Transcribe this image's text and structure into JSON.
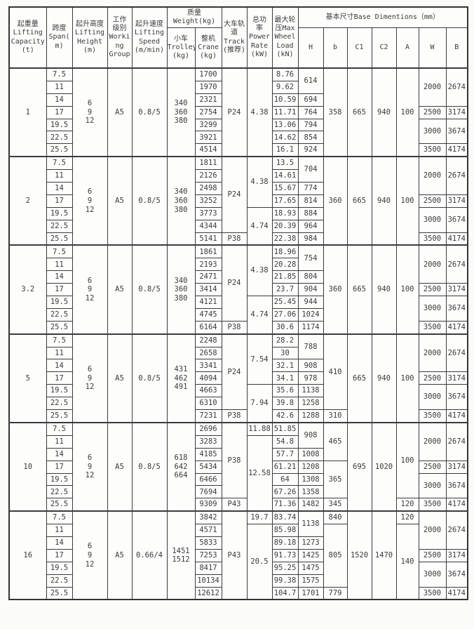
{
  "header": {
    "capacity": "起重量\nLifting\nCapacity\n(t)",
    "span": "跨度\nSpan(\nm)",
    "height": "起升高度\nLifting\nHeight\n(m)",
    "work_group": "工作\n级别\nWorki\nng\nGroup",
    "speed": "起升速度\nLifting\nSpeed\n(m/min)",
    "weight_group": "质量\nWeight(kg)",
    "trolley": "小车\nTrolley\n(kg)",
    "crane": "整机\nCrane\n(kg)",
    "track": "大车轨\n道\nTrack\n(推荐)",
    "power": "总功\n率\nPower\nRate\n(kW)",
    "wheel": "最大轮\n压Max\nWheel\nLoad\n(kN)",
    "base_group": "基本尺寸Base Dimentions（mm）",
    "H": "H",
    "b": "b",
    "C1": "C1",
    "C2": "C2",
    "A": "A",
    "W": "W",
    "B": "B"
  },
  "table": {
    "columns": [
      {
        "key": "capacity",
        "type": "group"
      },
      {
        "key": "spans",
        "type": "row"
      },
      {
        "key": "height",
        "type": "group"
      },
      {
        "key": "work_group",
        "type": "group"
      },
      {
        "key": "speed",
        "type": "group"
      },
      {
        "key": "trolley",
        "type": "group"
      },
      {
        "key": "crane",
        "type": "row"
      },
      {
        "key": "track",
        "type": "merged"
      },
      {
        "key": "power",
        "type": "merged"
      },
      {
        "key": "wheel",
        "type": "row"
      },
      {
        "key": "H",
        "type": "merged"
      },
      {
        "key": "b",
        "type": "merged"
      },
      {
        "key": "C1",
        "type": "merged"
      },
      {
        "key": "C2",
        "type": "merged"
      },
      {
        "key": "A",
        "type": "merged"
      },
      {
        "key": "W",
        "type": "merged"
      },
      {
        "key": "B",
        "type": "merged"
      }
    ],
    "groups": [
      {
        "capacity": "1",
        "height": "6\n9\n12",
        "work_group": "A5",
        "speed": "0.8/5",
        "trolley": "340\n360\n380",
        "spans": [
          "7.5",
          "11",
          "14",
          "17",
          "19.5",
          "22.5",
          "25.5"
        ],
        "crane": [
          "1700",
          "1970",
          "2321",
          "2754",
          "3299",
          "3921",
          "4514"
        ],
        "track": [
          [
            "P24",
            7
          ]
        ],
        "power": [
          [
            "4.38",
            7
          ]
        ],
        "wheel": [
          "8.76",
          "9.62",
          "10.59",
          "11.71",
          "13.06",
          "14.62",
          "16.1"
        ],
        "H": [
          [
            "614",
            2
          ],
          [
            "694",
            1
          ],
          [
            "764",
            1
          ],
          [
            "794",
            1
          ],
          [
            "854",
            1
          ],
          [
            "924",
            1
          ]
        ],
        "b": [
          [
            "358",
            7
          ]
        ],
        "C1": [
          [
            "665",
            7
          ]
        ],
        "C2": [
          [
            "940",
            7
          ]
        ],
        "A": [
          [
            "100",
            7
          ]
        ],
        "W": [
          [
            "2000",
            3
          ],
          [
            "2500",
            1
          ],
          [
            "3000",
            2
          ],
          [
            "3500",
            1
          ]
        ],
        "B": [
          [
            "2674",
            3
          ],
          [
            "3174",
            1
          ],
          [
            "3674",
            2
          ],
          [
            "4174",
            1
          ]
        ]
      },
      {
        "capacity": "2",
        "height": "6\n9\n12",
        "work_group": "A5",
        "speed": "0.8/5",
        "trolley": "340\n360\n380",
        "spans": [
          "7.5",
          "11",
          "14",
          "17",
          "19.5",
          "22.5",
          "25.5"
        ],
        "crane": [
          "1811",
          "2126",
          "2498",
          "3252",
          "3773",
          "4344",
          "5141"
        ],
        "track": [
          [
            "P24",
            6
          ],
          [
            "P38",
            1
          ]
        ],
        "power": [
          [
            "4.38",
            4
          ],
          [
            "4.74",
            3
          ]
        ],
        "wheel": [
          "13.5",
          "14.61",
          "15.67",
          "17.65",
          "18.93",
          "20.39",
          "22.38"
        ],
        "H": [
          [
            "704",
            2
          ],
          [
            "774",
            1
          ],
          [
            "814",
            1
          ],
          [
            "884",
            1
          ],
          [
            "964",
            1
          ],
          [
            "984",
            1
          ]
        ],
        "b": [
          [
            "360",
            7
          ]
        ],
        "C1": [
          [
            "665",
            7
          ]
        ],
        "C2": [
          [
            "940",
            7
          ]
        ],
        "A": [
          [
            "100",
            7
          ]
        ],
        "W": [
          [
            "2000",
            3
          ],
          [
            "2500",
            1
          ],
          [
            "3000",
            2
          ],
          [
            "3500",
            1
          ]
        ],
        "B": [
          [
            "2674",
            3
          ],
          [
            "3174",
            1
          ],
          [
            "3674",
            2
          ],
          [
            "4174",
            1
          ]
        ]
      },
      {
        "capacity": "3.2",
        "height": "6\n9\n12",
        "work_group": "A5",
        "speed": "0.8/5",
        "trolley": "340\n360\n380",
        "spans": [
          "7.5",
          "11",
          "14",
          "17",
          "19.5",
          "22.5",
          "25.5"
        ],
        "crane": [
          "1861",
          "2193",
          "2471",
          "3414",
          "4121",
          "4745",
          "6164"
        ],
        "track": [
          [
            "P24",
            6
          ],
          [
            "P38",
            1
          ]
        ],
        "power": [
          [
            "4.38",
            4
          ],
          [
            "4.74",
            3
          ]
        ],
        "wheel": [
          "18.96",
          "20.28",
          "21.85",
          "23.7",
          "25.45",
          "27.06",
          "30.6"
        ],
        "H": [
          [
            "754",
            2
          ],
          [
            "804",
            1
          ],
          [
            "904",
            1
          ],
          [
            "944",
            1
          ],
          [
            "1024",
            1
          ],
          [
            "1174",
            1
          ]
        ],
        "b": [
          [
            "360",
            7
          ]
        ],
        "C1": [
          [
            "665",
            7
          ]
        ],
        "C2": [
          [
            "940",
            7
          ]
        ],
        "A": [
          [
            "100",
            7
          ]
        ],
        "W": [
          [
            "2000",
            3
          ],
          [
            "2500",
            1
          ],
          [
            "3000",
            2
          ],
          [
            "3500",
            1
          ]
        ],
        "B": [
          [
            "2674",
            3
          ],
          [
            "3174",
            1
          ],
          [
            "3674",
            2
          ],
          [
            "4174",
            1
          ]
        ]
      },
      {
        "capacity": "5",
        "height": "6\n9\n12",
        "work_group": "A5",
        "speed": "0.8/5",
        "trolley": "431\n462\n491",
        "spans": [
          "7.5",
          "11",
          "14",
          "17",
          "19.5",
          "22.5",
          "25.5"
        ],
        "crane": [
          "2248",
          "2658",
          "3341",
          "4094",
          "4663",
          "6310",
          "7231"
        ],
        "track": [
          [
            "P24",
            6
          ],
          [
            "P38",
            1
          ]
        ],
        "power": [
          [
            "7.54",
            4
          ],
          [
            "7.94",
            3
          ]
        ],
        "wheel": [
          "28.2",
          "30",
          "32.1",
          "34.1",
          "35.6",
          "39.8",
          "42.6"
        ],
        "H": [
          [
            "788",
            2
          ],
          [
            "908",
            1
          ],
          [
            "978",
            1
          ],
          [
            "1138",
            1
          ],
          [
            "1258",
            1
          ],
          [
            "1288",
            1
          ]
        ],
        "b": [
          [
            "410",
            6
          ],
          [
            "310",
            1
          ]
        ],
        "C1": [
          [
            "665",
            7
          ]
        ],
        "C2": [
          [
            "940",
            7
          ]
        ],
        "A": [
          [
            "100",
            7
          ]
        ],
        "W": [
          [
            "2000",
            3
          ],
          [
            "2500",
            1
          ],
          [
            "3000",
            2
          ],
          [
            "3500",
            1
          ]
        ],
        "B": [
          [
            "2674",
            3
          ],
          [
            "3174",
            1
          ],
          [
            "3674",
            2
          ],
          [
            "4174",
            1
          ]
        ]
      },
      {
        "capacity": "10",
        "height": "6\n9\n12",
        "work_group": "A5",
        "speed": "0.8/5",
        "trolley": "618\n642\n664",
        "spans": [
          "7.5",
          "11",
          "14",
          "17",
          "19.5",
          "22.5",
          "25.5"
        ],
        "crane": [
          "2696",
          "3283",
          "4185",
          "5434",
          "6466",
          "7694",
          "9309"
        ],
        "track": [
          [
            "P38",
            6
          ],
          [
            "P43",
            1
          ]
        ],
        "power": [
          [
            "11.88",
            1
          ],
          [
            "12.58",
            6
          ]
        ],
        "wheel": [
          "51.85",
          "54.8",
          "57.7",
          "61.21",
          "64",
          "67.26",
          "71.36"
        ],
        "H": [
          [
            "908",
            2
          ],
          [
            "1008",
            1
          ],
          [
            "1208",
            1
          ],
          [
            "1308",
            1
          ],
          [
            "1358",
            1
          ],
          [
            "1482",
            1
          ]
        ],
        "b": [
          [
            "465",
            3
          ],
          [
            "365",
            3
          ],
          [
            "345",
            1
          ]
        ],
        "C1": [
          [
            "695",
            7
          ]
        ],
        "C2": [
          [
            "1020",
            7
          ]
        ],
        "A": [
          [
            "100",
            6
          ],
          [
            "120",
            1
          ]
        ],
        "W": [
          [
            "2000",
            3
          ],
          [
            "2500",
            1
          ],
          [
            "3000",
            2
          ],
          [
            "3500",
            1
          ]
        ],
        "B": [
          [
            "2674",
            3
          ],
          [
            "3174",
            1
          ],
          [
            "3674",
            2
          ],
          [
            "4174",
            1
          ]
        ]
      },
      {
        "capacity": "16",
        "height": "6\n9\n12",
        "work_group": "A5",
        "speed": "0.66/4",
        "trolley": "1451\n1512",
        "spans": [
          "7.5",
          "11",
          "14",
          "17",
          "19.5",
          "22.5",
          "25.5"
        ],
        "crane": [
          "3842",
          "4571",
          "5833",
          "7253",
          "8417",
          "10134",
          "12612"
        ],
        "track": [
          [
            "P43",
            7
          ]
        ],
        "power": [
          [
            "19.7",
            1
          ],
          [
            "20.5",
            6
          ]
        ],
        "wheel": [
          "83.74",
          "85.98",
          "89.18",
          "91.73",
          "95.25",
          "99.38",
          "104.7"
        ],
        "H": [
          [
            "1138",
            2
          ],
          [
            "1273",
            1
          ],
          [
            "1425",
            1
          ],
          [
            "1475",
            1
          ],
          [
            "1575",
            1
          ],
          [
            "1701",
            1
          ]
        ],
        "b": [
          [
            "840",
            1
          ],
          [
            "805",
            5
          ],
          [
            "779",
            1
          ]
        ],
        "C1": [
          [
            "1520",
            7
          ]
        ],
        "C2": [
          [
            "1470",
            7
          ]
        ],
        "A": [
          [
            "120",
            1
          ],
          [
            "140",
            6
          ]
        ],
        "W": [
          [
            "2000",
            3
          ],
          [
            "2500",
            1
          ],
          [
            "3000",
            2
          ],
          [
            "3500",
            1
          ]
        ],
        "B": [
          [
            "2674",
            3
          ],
          [
            "3174",
            1
          ],
          [
            "3674",
            2
          ],
          [
            "4174",
            1
          ]
        ]
      }
    ]
  }
}
